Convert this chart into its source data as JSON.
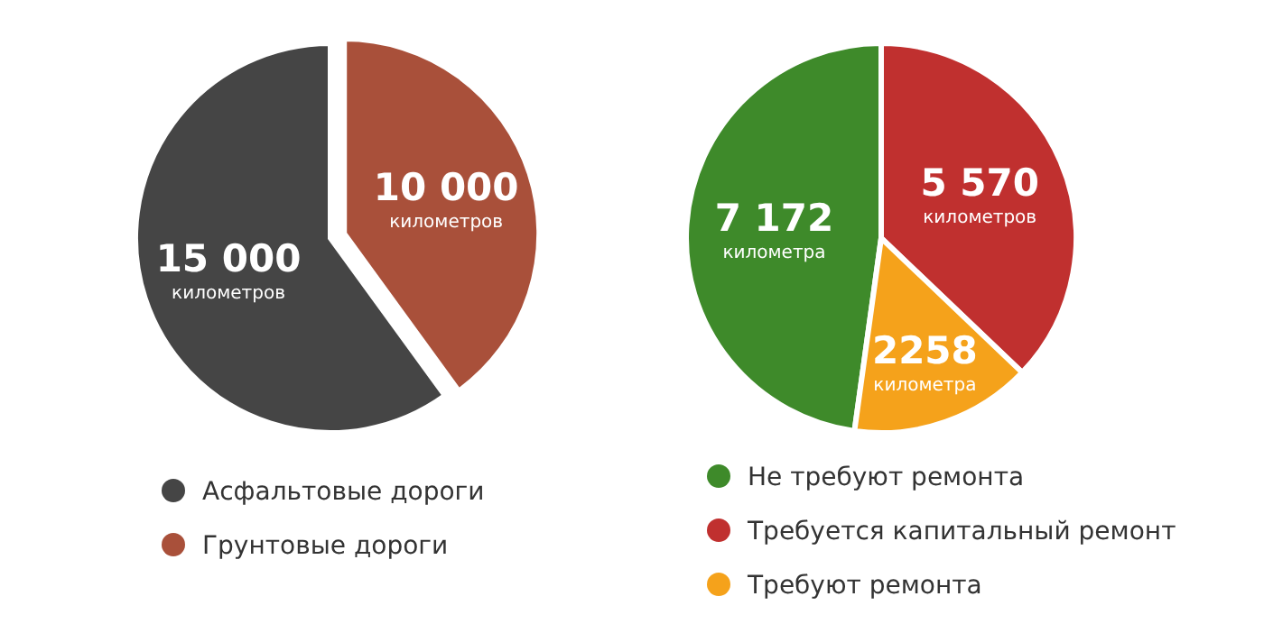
{
  "chart_data": [
    {
      "type": "pie",
      "categories": [
        "Асфальтовые дороги",
        "Грунтовые дороги"
      ],
      "values": [
        15000,
        10000
      ],
      "colors": [
        "#454545",
        "#a9503a"
      ],
      "value_labels": [
        "15 000\nкилометров",
        "10 000\nкилометров"
      ],
      "legend": "bottom"
    },
    {
      "type": "pie",
      "categories": [
        "Не требуют ремонта",
        "Требуется капитальный ремонт",
        "Требуют ремонта"
      ],
      "values": [
        7172,
        5570,
        2258
      ],
      "colors": [
        "#3e8a2a",
        "#c0302f",
        "#f5a21b"
      ],
      "value_labels": [
        "7 172\nкилометра",
        "5 570\nкилометров",
        "2258\nкилометра"
      ],
      "legend": "bottom"
    }
  ]
}
